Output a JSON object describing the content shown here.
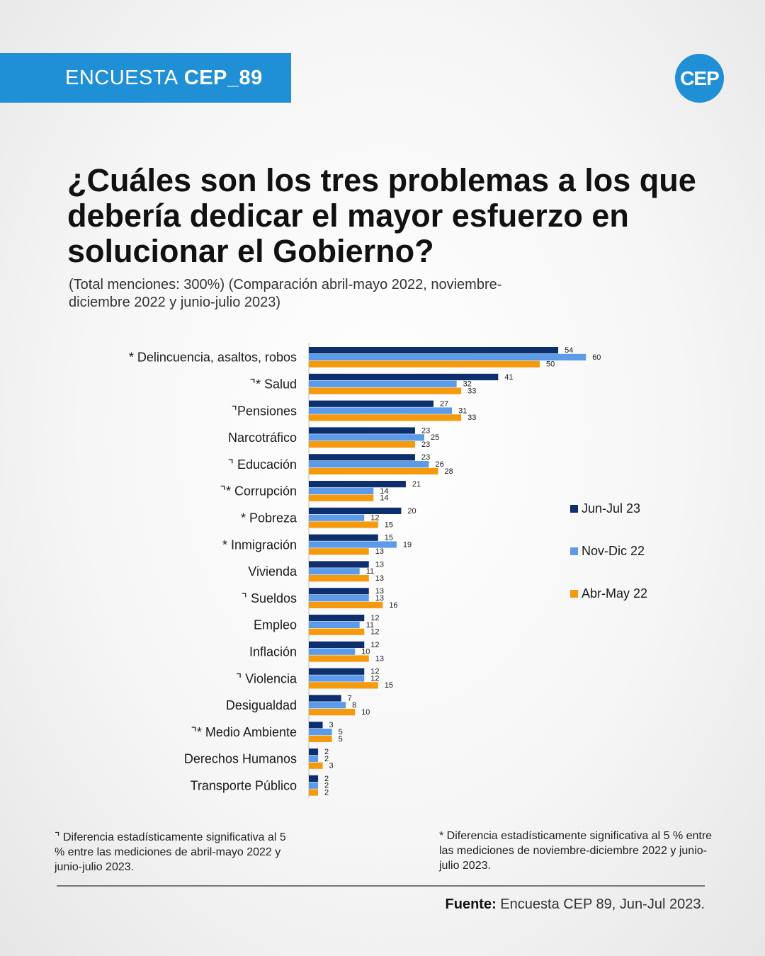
{
  "header": {
    "banner_light": "ENCUESTA",
    "banner_bold": "CEP_89",
    "logo_text": "CEP",
    "brand_color": "#1f8fd6"
  },
  "title": "¿Cuáles son los tres problemas a los que debería dedicar el mayor esfuerzo en solucionar el Gobierno?",
  "subtitle": "(Total menciones: 300%) (Comparación abril-mayo 2022, noviembre-diciembre 2022 y junio-julio 2023)",
  "chart_data": {
    "type": "bar",
    "orientation": "horizontal",
    "categories": [
      "* Delincuencia, asaltos, robos",
      "⌝* Salud",
      "⌝Pensiones",
      "Narcotráfico",
      "⌝ Educación",
      "⌝* Corrupción",
      "* Pobreza",
      "* Inmigración",
      "Vivienda",
      "⌝ Sueldos",
      "Empleo",
      "Inflación",
      "⌝ Violencia",
      "Desigualdad",
      "⌝* Medio Ambiente",
      "Derechos Humanos",
      "Transporte Público"
    ],
    "series": [
      {
        "name": "Jun-Jul 23",
        "color": "#0d2f6e",
        "values": [
          54,
          41,
          27,
          23,
          23,
          21,
          20,
          15,
          13,
          13,
          12,
          12,
          12,
          7,
          3,
          2,
          2
        ]
      },
      {
        "name": "Nov-Dic 22",
        "color": "#5b9bea",
        "values": [
          60,
          32,
          31,
          25,
          26,
          14,
          12,
          19,
          11,
          13,
          11,
          10,
          12,
          8,
          5,
          2,
          2
        ]
      },
      {
        "name": "Abr-May 22",
        "color": "#f59a0c",
        "values": [
          50,
          33,
          33,
          23,
          28,
          14,
          15,
          13,
          13,
          16,
          12,
          13,
          15,
          10,
          5,
          3,
          2
        ]
      }
    ],
    "xlim": [
      0,
      65
    ],
    "legend_position": "right",
    "grid": false
  },
  "notes": {
    "left": "⌝ Diferencia estadísticamente significativa al 5 % entre las mediciones de abril-mayo 2022 y junio-julio 2023.",
    "right": "* Diferencia estadísticamente significativa al 5 % entre las mediciones de noviembre-diciembre 2022 y junio-julio 2023."
  },
  "source": {
    "lead": "Fuente:",
    "text": "Encuesta CEP 89, Jun-Jul 2023."
  }
}
